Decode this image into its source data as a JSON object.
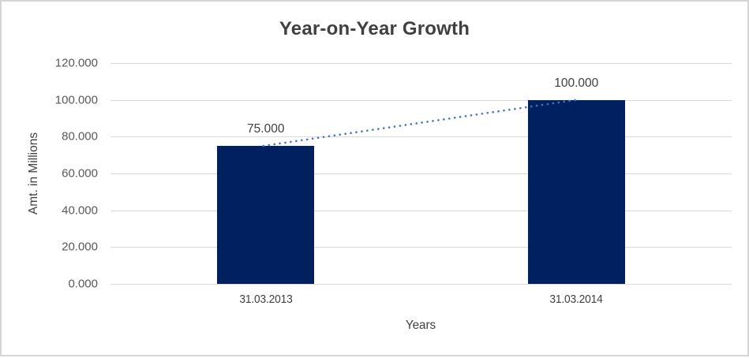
{
  "chart_data": {
    "type": "bar",
    "title": "Year-on-Year Growth",
    "xlabel": "Years",
    "ylabel": "Amt. in Millions",
    "categories": [
      "31.03.2013",
      "31.03.2014"
    ],
    "values": [
      75,
      100
    ],
    "data_labels": [
      "75.000",
      "100.000"
    ],
    "ytick_labels": [
      "0.000",
      "20.000",
      "40.000",
      "60.000",
      "80.000",
      "100.000",
      "120.000"
    ],
    "ytick_step": 20,
    "ylim": [
      0,
      120
    ],
    "grid": true,
    "legend": "none",
    "trendline": {
      "type": "linear",
      "style": "dotted",
      "from_value": 75,
      "to_value": 100
    },
    "colors": {
      "bar": "#012060",
      "trendline": "#4472C4",
      "gridline": "#D9D9D9",
      "axis_line": "#D9D9D9",
      "title_text": "#404040",
      "ytick_text": "#595959",
      "xtick_text": "#404040",
      "datalabel_text": "#404040"
    }
  }
}
